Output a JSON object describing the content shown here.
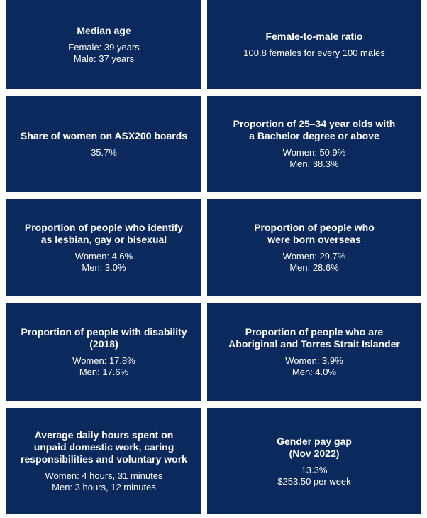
{
  "colors": {
    "card_bg": "#0a2a5e",
    "text": "#ffffff"
  },
  "cards": [
    {
      "title": "Median age",
      "lines": [
        "Female: 39 years",
        "Male: 37 years"
      ]
    },
    {
      "title": "Female-to-male ratio",
      "lines": [
        "100.8 females for every 100 males"
      ]
    },
    {
      "title": "Share of women on ASX200 boards",
      "lines": [
        "35.7%"
      ]
    },
    {
      "title": "Proportion of 25–34 year olds with\na Bachelor degree or above",
      "lines": [
        "Women: 50.9%",
        "Men: 38.3%"
      ]
    },
    {
      "title": "Proportion of people who identify\nas lesbian, gay or bisexual",
      "lines": [
        "Women: 4.6%",
        "Men: 3.0%"
      ]
    },
    {
      "title": "Proportion of people who\nwere born overseas",
      "lines": [
        "Women: 29.7%",
        "Men: 28.6%"
      ]
    },
    {
      "title": "Proportion of people with disability\n(2018)",
      "lines": [
        "Women: 17.8%",
        "Men: 17.6%"
      ]
    },
    {
      "title": "Proportion of people who are\nAboriginal and Torres Strait Islander",
      "lines": [
        "Women: 3.9%",
        "Men: 4.0%"
      ]
    },
    {
      "title": "Average daily hours spent on\nunpaid domestic work, caring\nresponsibilities and voluntary work",
      "lines": [
        "Women: 4 hours, 31 minutes",
        "Men: 3 hours, 12 minutes"
      ]
    },
    {
      "title": "Gender pay gap\n(Nov 2022)",
      "lines": [
        "13.3%",
        "$253.50 per week"
      ]
    }
  ]
}
